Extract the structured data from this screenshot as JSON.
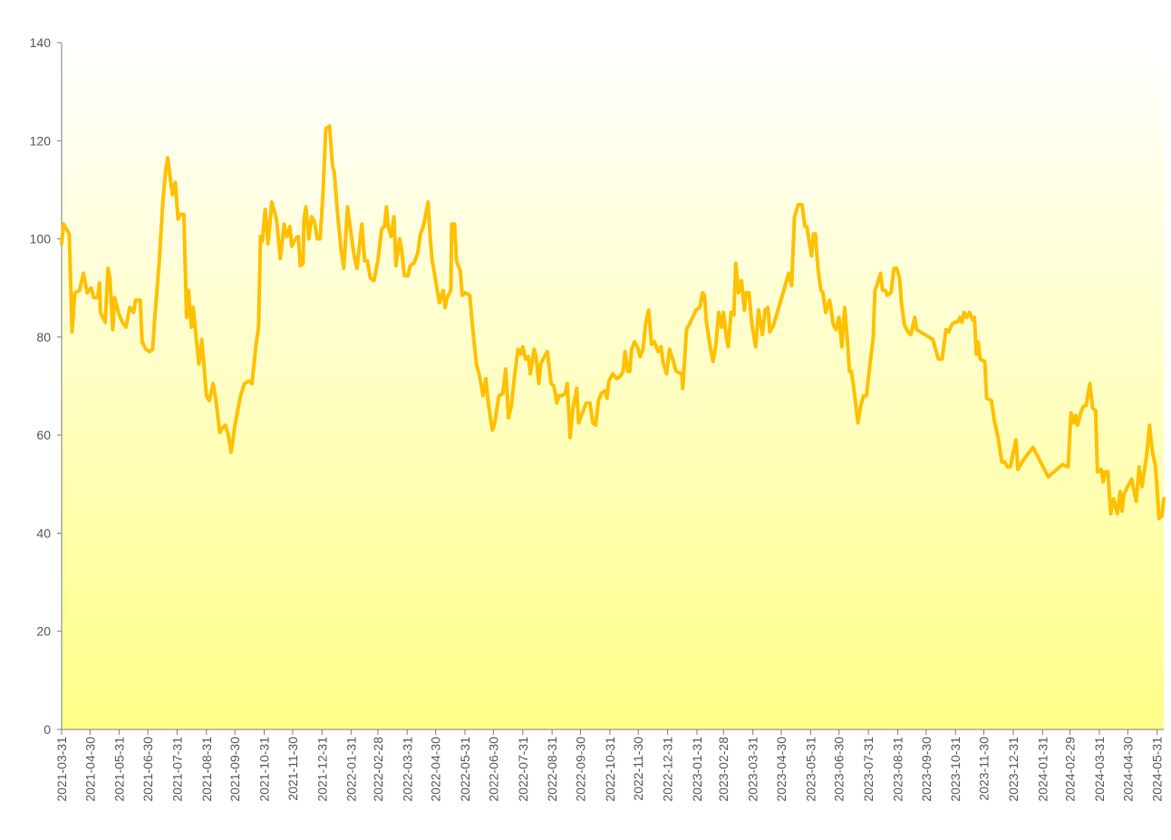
{
  "chart_data": {
    "type": "line",
    "color": "#ffc000",
    "ylim": [
      0,
      140
    ],
    "yticks": [
      0,
      20,
      40,
      60,
      80,
      100,
      120,
      140
    ],
    "xlim": [
      "2021-03-31",
      "2024-06-07"
    ],
    "xticks": [
      "2021-03-31",
      "2021-04-30",
      "2021-05-31",
      "2021-06-30",
      "2021-07-31",
      "2021-08-31",
      "2021-09-30",
      "2021-10-31",
      "2021-11-30",
      "2021-12-31",
      "2022-01-31",
      "2022-02-28",
      "2022-03-31",
      "2022-04-30",
      "2022-05-31",
      "2022-06-30",
      "2022-07-31",
      "2022-08-31",
      "2022-09-30",
      "2022-10-31",
      "2022-11-30",
      "2022-12-31",
      "2023-01-31",
      "2023-02-28",
      "2023-03-31",
      "2023-04-30",
      "2023-05-31",
      "2023-06-30",
      "2023-07-31",
      "2023-08-31",
      "2023-09-30",
      "2023-10-31",
      "2023-11-30",
      "2023-12-31",
      "2024-01-31",
      "2024-02-29",
      "2024-03-31",
      "2024-04-30",
      "2024-05-31"
    ],
    "x": [
      "2021-03-31",
      "2021-04-02",
      "2021-04-08",
      "2021-04-11",
      "2021-04-14",
      "2021-04-19",
      "2021-04-23",
      "2021-04-27",
      "2021-05-01",
      "2021-05-04",
      "2021-05-08",
      "2021-05-10",
      "2021-05-11",
      "2021-05-16",
      "2021-05-19",
      "2021-05-21",
      "2021-05-24",
      "2021-05-26",
      "2021-05-30",
      "2021-06-03",
      "2021-06-07",
      "2021-06-11",
      "2021-06-15",
      "2021-06-17",
      "2021-06-22",
      "2021-06-24",
      "2021-06-28",
      "2021-07-02",
      "2021-07-05",
      "2021-07-07",
      "2021-07-12",
      "2021-07-16",
      "2021-07-19",
      "2021-07-21",
      "2021-07-24",
      "2021-07-26",
      "2021-07-29",
      "2021-08-01",
      "2021-08-03",
      "2021-08-07",
      "2021-08-10",
      "2021-08-12",
      "2021-08-15",
      "2021-08-17",
      "2021-08-20",
      "2021-08-23",
      "2021-08-26",
      "2021-08-31",
      "2021-09-03",
      "2021-09-07",
      "2021-09-10",
      "2021-09-14",
      "2021-09-17",
      "2021-09-20",
      "2021-09-23",
      "2021-09-26",
      "2021-09-30",
      "2021-10-06",
      "2021-10-10",
      "2021-10-15",
      "2021-10-18",
      "2021-10-22",
      "2021-10-25",
      "2021-10-27",
      "2021-10-29",
      "2021-11-01",
      "2021-11-04",
      "2021-11-08",
      "2021-11-13",
      "2021-11-17",
      "2021-11-21",
      "2021-11-24",
      "2021-11-27",
      "2021-11-29",
      "2021-12-03",
      "2021-12-06",
      "2021-12-08",
      "2021-12-11",
      "2021-12-12",
      "2021-12-14",
      "2021-12-17",
      "2021-12-20",
      "2021-12-23",
      "2021-12-26",
      "2021-12-29",
      "2022-01-01",
      "2022-01-04",
      "2022-01-08",
      "2022-01-11",
      "2022-01-13",
      "2022-01-16",
      "2022-01-20",
      "2022-01-23",
      "2022-01-27",
      "2022-01-31",
      "2022-02-03",
      "2022-02-06",
      "2022-02-11",
      "2022-02-14",
      "2022-02-17",
      "2022-02-20",
      "2022-02-24",
      "2022-02-28",
      "2022-03-04",
      "2022-03-07",
      "2022-03-09",
      "2022-03-11",
      "2022-03-14",
      "2022-03-17",
      "2022-03-19",
      "2022-03-23",
      "2022-03-25",
      "2022-03-28",
      "2022-04-01",
      "2022-04-03",
      "2022-04-07",
      "2022-04-11",
      "2022-04-14",
      "2022-04-17",
      "2022-04-22",
      "2022-04-24",
      "2022-04-26",
      "2022-04-30",
      "2022-05-04",
      "2022-05-08",
      "2022-05-10",
      "2022-05-12",
      "2022-05-16",
      "2022-05-17",
      "2022-05-20",
      "2022-05-22",
      "2022-05-26",
      "2022-05-28",
      "2022-05-31",
      "2022-06-05",
      "2022-06-08",
      "2022-06-12",
      "2022-06-16",
      "2022-06-19",
      "2022-06-22",
      "2022-06-25",
      "2022-06-29",
      "2022-07-01",
      "2022-07-06",
      "2022-07-10",
      "2022-07-13",
      "2022-07-16",
      "2022-07-19",
      "2022-07-22",
      "2022-07-26",
      "2022-07-29",
      "2022-07-31",
      "2022-08-03",
      "2022-08-06",
      "2022-08-08",
      "2022-08-12",
      "2022-08-14",
      "2022-08-17",
      "2022-08-19",
      "2022-08-23",
      "2022-08-26",
      "2022-08-30",
      "2022-09-02",
      "2022-09-05",
      "2022-09-07",
      "2022-09-10",
      "2022-09-14",
      "2022-09-16",
      "2022-09-19",
      "2022-09-22",
      "2022-09-26",
      "2022-09-28",
      "2022-10-02",
      "2022-10-06",
      "2022-10-10",
      "2022-10-13",
      "2022-10-16",
      "2022-10-19",
      "2022-10-22",
      "2022-10-26",
      "2022-10-28",
      "2022-10-30",
      "2022-11-03",
      "2022-11-07",
      "2022-11-11",
      "2022-11-14",
      "2022-11-16",
      "2022-11-19",
      "2022-11-21",
      "2022-11-23",
      "2022-11-26",
      "2022-11-29",
      "2022-12-02",
      "2022-12-05",
      "2022-12-08",
      "2022-12-11",
      "2022-12-14",
      "2022-12-17",
      "2022-12-21",
      "2022-12-24",
      "2022-12-26",
      "2022-12-30",
      "2023-01-02",
      "2023-01-06",
      "2023-01-09",
      "2023-01-15",
      "2023-01-16",
      "2023-01-20",
      "2023-01-24",
      "2023-01-30",
      "2023-02-03",
      "2023-02-06",
      "2023-02-08",
      "2023-02-10",
      "2023-02-14",
      "2023-02-17",
      "2023-02-20",
      "2023-02-23",
      "2023-02-26",
      "2023-02-28",
      "2023-03-03",
      "2023-03-05",
      "2023-03-08",
      "2023-03-11",
      "2023-03-13",
      "2023-03-16",
      "2023-03-19",
      "2023-03-22",
      "2023-03-24",
      "2023-03-27",
      "2023-03-30",
      "2023-04-03",
      "2023-04-06",
      "2023-04-10",
      "2023-04-13",
      "2023-04-16",
      "2023-04-18",
      "2023-04-22",
      "2023-05-08",
      "2023-05-11",
      "2023-05-14",
      "2023-05-18",
      "2023-05-22",
      "2023-05-25",
      "2023-05-27",
      "2023-05-30",
      "2023-06-01",
      "2023-06-03",
      "2023-06-05",
      "2023-06-08",
      "2023-06-11",
      "2023-06-13",
      "2023-06-16",
      "2023-06-20",
      "2023-06-21",
      "2023-06-24",
      "2023-06-27",
      "2023-06-30",
      "2023-07-03",
      "2023-07-06",
      "2023-07-09",
      "2023-07-11",
      "2023-07-13",
      "2023-07-16",
      "2023-07-20",
      "2023-07-23",
      "2023-07-26",
      "2023-07-29",
      "2023-08-02",
      "2023-08-05",
      "2023-08-07",
      "2023-08-09",
      "2023-08-13",
      "2023-08-15",
      "2023-08-18",
      "2023-08-20",
      "2023-08-24",
      "2023-08-27",
      "2023-08-30",
      "2023-09-02",
      "2023-09-04",
      "2023-09-07",
      "2023-09-11",
      "2023-09-14",
      "2023-09-18",
      "2023-09-20",
      "2023-10-07",
      "2023-10-13",
      "2023-10-17",
      "2023-10-21",
      "2023-10-24",
      "2023-10-27",
      "2023-10-30",
      "2023-11-02",
      "2023-11-05",
      "2023-11-07",
      "2023-11-09",
      "2023-11-12",
      "2023-11-15",
      "2023-11-18",
      "2023-11-20",
      "2023-11-22",
      "2023-11-24",
      "2023-11-26",
      "2023-12-01",
      "2023-12-03",
      "2023-12-08",
      "2023-12-11",
      "2023-12-15",
      "2023-12-17",
      "2023-12-19",
      "2023-12-22",
      "2023-12-25",
      "2023-12-28",
      "2023-12-31",
      "2024-01-03",
      "2024-01-05",
      "2024-01-11",
      "2024-01-21",
      "2024-02-06",
      "2024-02-21",
      "2024-02-27",
      "2024-03-01",
      "2024-03-04",
      "2024-03-06",
      "2024-03-08",
      "2024-03-12",
      "2024-03-15",
      "2024-03-17",
      "2024-03-21",
      "2024-03-24",
      "2024-03-27",
      "2024-03-29",
      "2024-04-02",
      "2024-04-04",
      "2024-04-06",
      "2024-04-09",
      "2024-04-12",
      "2024-04-15",
      "2024-04-19",
      "2024-04-22",
      "2024-04-24",
      "2024-04-26",
      "2024-04-30",
      "2024-05-04",
      "2024-05-09",
      "2024-05-12",
      "2024-05-15",
      "2024-05-20",
      "2024-05-23",
      "2024-05-26",
      "2024-05-29",
      "2024-05-31",
      "2024-06-02",
      "2024-06-05",
      "2024-06-07"
    ],
    "values": [
      99,
      103,
      101,
      81,
      89,
      89.5,
      93,
      89,
      90,
      88,
      88,
      91,
      85,
      83,
      94,
      92,
      81.5,
      88,
      85,
      83,
      82,
      86,
      85,
      87.5,
      87.5,
      79,
      77.5,
      77,
      77.5,
      83,
      95,
      108,
      114,
      116.5,
      112,
      109,
      111.5,
      104,
      105,
      105,
      84,
      89.5,
      82,
      86,
      80,
      74.5,
      79.5,
      68,
      67,
      70.5,
      67,
      60.5,
      61.5,
      62,
      60,
      56.5,
      62,
      68,
      70.5,
      71,
      70.5,
      78,
      82,
      100.5,
      99.5,
      106,
      99,
      107.5,
      104,
      96,
      103,
      100.5,
      102.5,
      98.5,
      100,
      100.5,
      94.5,
      95,
      104,
      106.5,
      100,
      104.5,
      103.5,
      100,
      100,
      109,
      122.5,
      123,
      115,
      113.5,
      106,
      98,
      94,
      106.5,
      100.5,
      96.5,
      94,
      103,
      95.5,
      95.5,
      92,
      91.5,
      95.5,
      102,
      102.5,
      106.5,
      102.5,
      100.5,
      104.5,
      94.5,
      100,
      98,
      92.5,
      92.5,
      94.5,
      95,
      97,
      101,
      102.5,
      107.5,
      101,
      96,
      91.5,
      87,
      89.5,
      86,
      88,
      89.5,
      103,
      103,
      95.5,
      93.5,
      88.5,
      89,
      88.5,
      82,
      74.5,
      71.5,
      68,
      71.5,
      66,
      61,
      62,
      68,
      68.5,
      73.5,
      63.5,
      66,
      71.5,
      77.5,
      76.5,
      78,
      75.5,
      76,
      72.5,
      77.5,
      76,
      70.5,
      74.5,
      76,
      77,
      70.5,
      70,
      66.5,
      68,
      68,
      68.5,
      70.5,
      59.5,
      65.5,
      69.5,
      62.5,
      64.5,
      66.5,
      66.5,
      62.5,
      62,
      67,
      68.5,
      69,
      67.5,
      71,
      72.5,
      71.5,
      72,
      73,
      77,
      73,
      73,
      77.5,
      79,
      78,
      76,
      77.5,
      83,
      85.5,
      78.5,
      79,
      77,
      78,
      75,
      72.5,
      77.5,
      75,
      73,
      72.5,
      69.5,
      81.5,
      83,
      85.5,
      86,
      89,
      88.5,
      83,
      78,
      75,
      78.5,
      85,
      82,
      85,
      80,
      78,
      85,
      84.5,
      95,
      89,
      91.5,
      85.5,
      89,
      89,
      82.5,
      78,
      85.5,
      80.5,
      85.5,
      86,
      81,
      82.5,
      93,
      90.5,
      104.5,
      107,
      107,
      102.5,
      102.5,
      99,
      96.5,
      101,
      101,
      93.5,
      89.5,
      89,
      85,
      87.5,
      86.5,
      82.5,
      81.5,
      84,
      78,
      86,
      79,
      73,
      73,
      69,
      62.5,
      66,
      68,
      68,
      75,
      79.5,
      89.5,
      90.5,
      93,
      89.5,
      89.5,
      88.5,
      89,
      94,
      94,
      92,
      87,
      82.5,
      81,
      80.5,
      84,
      81.5,
      79.5,
      75.5,
      75.5,
      81.5,
      81,
      82.5,
      83,
      83,
      84,
      83,
      85,
      84,
      85,
      83.5,
      84,
      76.5,
      79,
      75.5,
      75,
      67.5,
      67,
      63,
      59.5,
      57,
      54.5,
      54.5,
      53.5,
      53.5,
      56.5,
      59,
      53,
      55,
      57.5,
      51.5,
      54,
      53.5,
      64.5,
      62.5,
      64,
      62,
      65,
      66,
      66,
      70.5,
      65.5,
      65,
      52.5,
      53,
      50.5,
      52.5,
      52.5,
      44,
      47,
      44,
      48.5,
      44.5,
      48,
      49.5,
      51,
      46.5,
      53.5,
      49.5,
      56,
      62,
      56.5,
      54,
      49,
      43,
      43.5,
      47
    ]
  }
}
